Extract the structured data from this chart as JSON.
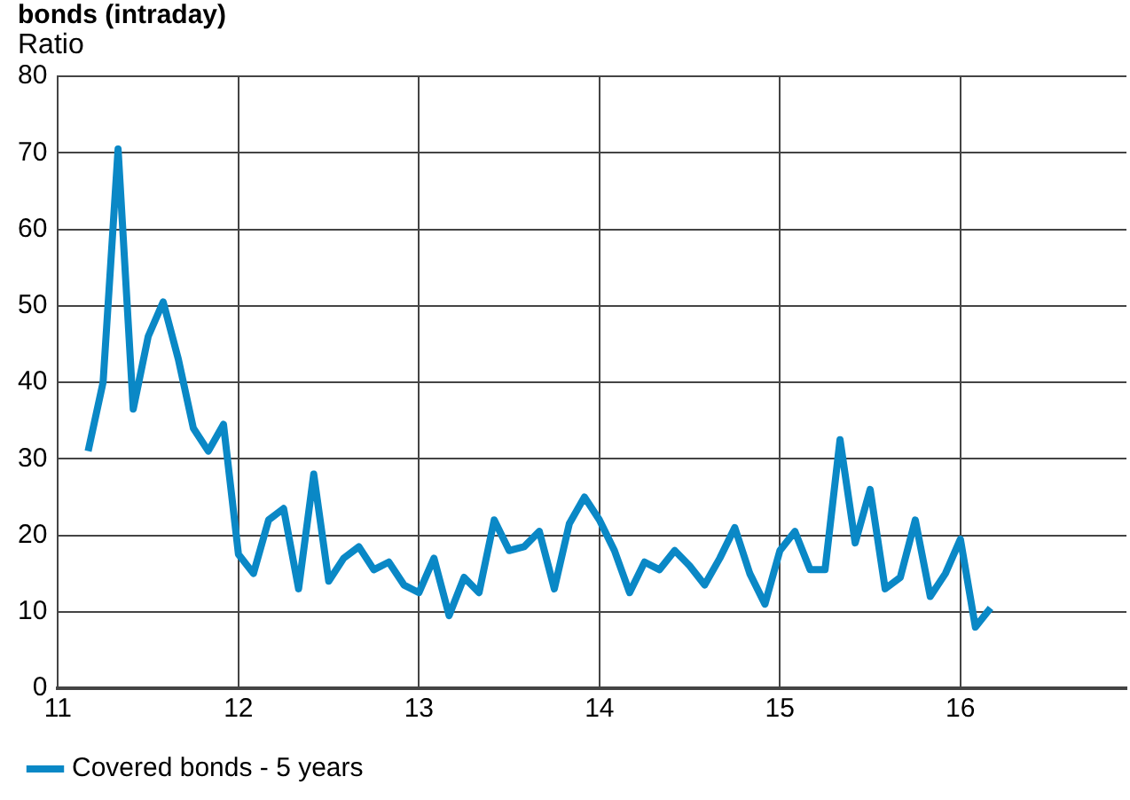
{
  "chart_data": {
    "type": "line",
    "title": "bonds (intraday)",
    "ylabel": "Ratio",
    "x": [
      11.167,
      11.25,
      11.333,
      11.417,
      11.5,
      11.583,
      11.667,
      11.75,
      11.833,
      11.917,
      12,
      12.083,
      12.167,
      12.25,
      12.333,
      12.417,
      12.5,
      12.583,
      12.667,
      12.75,
      12.833,
      12.917,
      13,
      13.083,
      13.167,
      13.25,
      13.333,
      13.417,
      13.5,
      13.583,
      13.667,
      13.75,
      13.833,
      13.917,
      14,
      14.083,
      14.167,
      14.25,
      14.333,
      14.417,
      14.5,
      14.583,
      14.667,
      14.75,
      14.833,
      14.917,
      15,
      15.083,
      15.167,
      15.25,
      15.333,
      15.417,
      15.5,
      15.583,
      15.667,
      15.75,
      15.833,
      15.917,
      16,
      16.083,
      16.167
    ],
    "series": [
      {
        "name": "Covered bonds - 5 years",
        "color": "#0a88c6",
        "values": [
          31,
          40,
          70.5,
          36.5,
          46,
          50.5,
          43,
          34,
          31,
          34.5,
          17.5,
          15,
          22,
          23.5,
          13,
          28,
          14,
          17,
          18.5,
          15.5,
          16.5,
          13.5,
          12.5,
          17,
          9.5,
          14.5,
          12.5,
          22,
          18,
          18.5,
          20.5,
          13,
          21.5,
          25,
          22,
          18,
          12.5,
          16.5,
          15.5,
          18,
          16,
          13.5,
          17,
          21,
          15,
          11,
          18,
          20.5,
          15.5,
          15.5,
          32.5,
          19,
          26,
          13,
          14.5,
          22,
          12,
          15,
          19.5,
          8,
          10.5
        ]
      }
    ],
    "xlim": [
      11,
      16.92
    ],
    "xticks": [
      11,
      12,
      13,
      14,
      15,
      16
    ],
    "ylim": [
      0,
      80
    ],
    "yticks": [
      0,
      10,
      20,
      30,
      40,
      50,
      60,
      70,
      80
    ],
    "grid": true,
    "legend": "bottom left",
    "marker": "none",
    "line_style": "solid"
  }
}
